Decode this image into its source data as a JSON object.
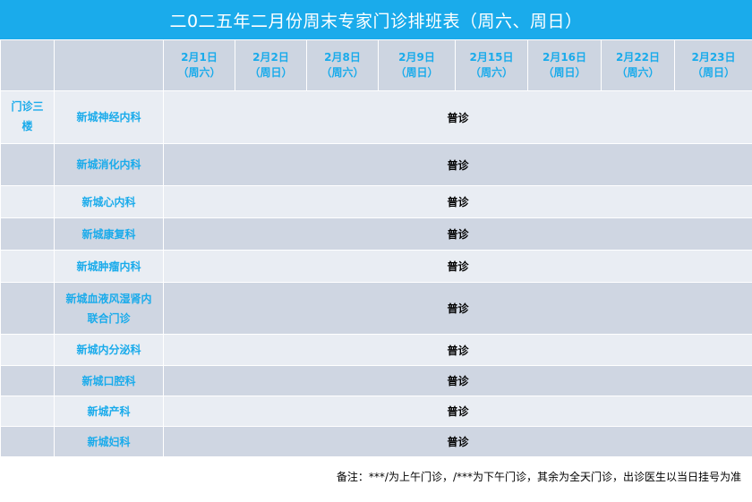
{
  "title": "二0二五年二月份周末专家门诊排班表（周六、周日）",
  "dates": [
    {
      "date": "2月1日",
      "weekday": "（周六）"
    },
    {
      "date": "2月2日",
      "weekday": "（周日）"
    },
    {
      "date": "2月8日",
      "weekday": "（周六）"
    },
    {
      "date": "2月9日",
      "weekday": "（周日）"
    },
    {
      "date": "2月15日",
      "weekday": "（周六）"
    },
    {
      "date": "2月16日",
      "weekday": "（周日）"
    },
    {
      "date": "2月22日",
      "weekday": "（周六）"
    },
    {
      "date": "2月23日",
      "weekday": "（周日）"
    }
  ],
  "floor": "门诊三楼",
  "rows": [
    {
      "dept": "新城神经内科",
      "service": "普诊"
    },
    {
      "dept": "新城消化内科",
      "service": "普诊"
    },
    {
      "dept": "新城心内科",
      "service": "普诊"
    },
    {
      "dept": "新城康复科",
      "service": "普诊"
    },
    {
      "dept": "新城肿瘤内科",
      "service": "普诊"
    },
    {
      "dept": "新城血液风湿肾内联合门诊",
      "service": "普诊"
    },
    {
      "dept": "新城内分泌科",
      "service": "普诊"
    },
    {
      "dept": "新城口腔科",
      "service": "普诊"
    },
    {
      "dept": "新城产科",
      "service": "普诊"
    },
    {
      "dept": "新城妇科",
      "service": "普诊"
    }
  ],
  "footnote": "备注：***/为上午门诊，/***为下午门诊，其余为全天门诊，出诊医生以当日挂号为准",
  "colors": {
    "accent": "#1aabeb",
    "row_light": "#e9edf3",
    "row_dark": "#cfd6e2"
  }
}
